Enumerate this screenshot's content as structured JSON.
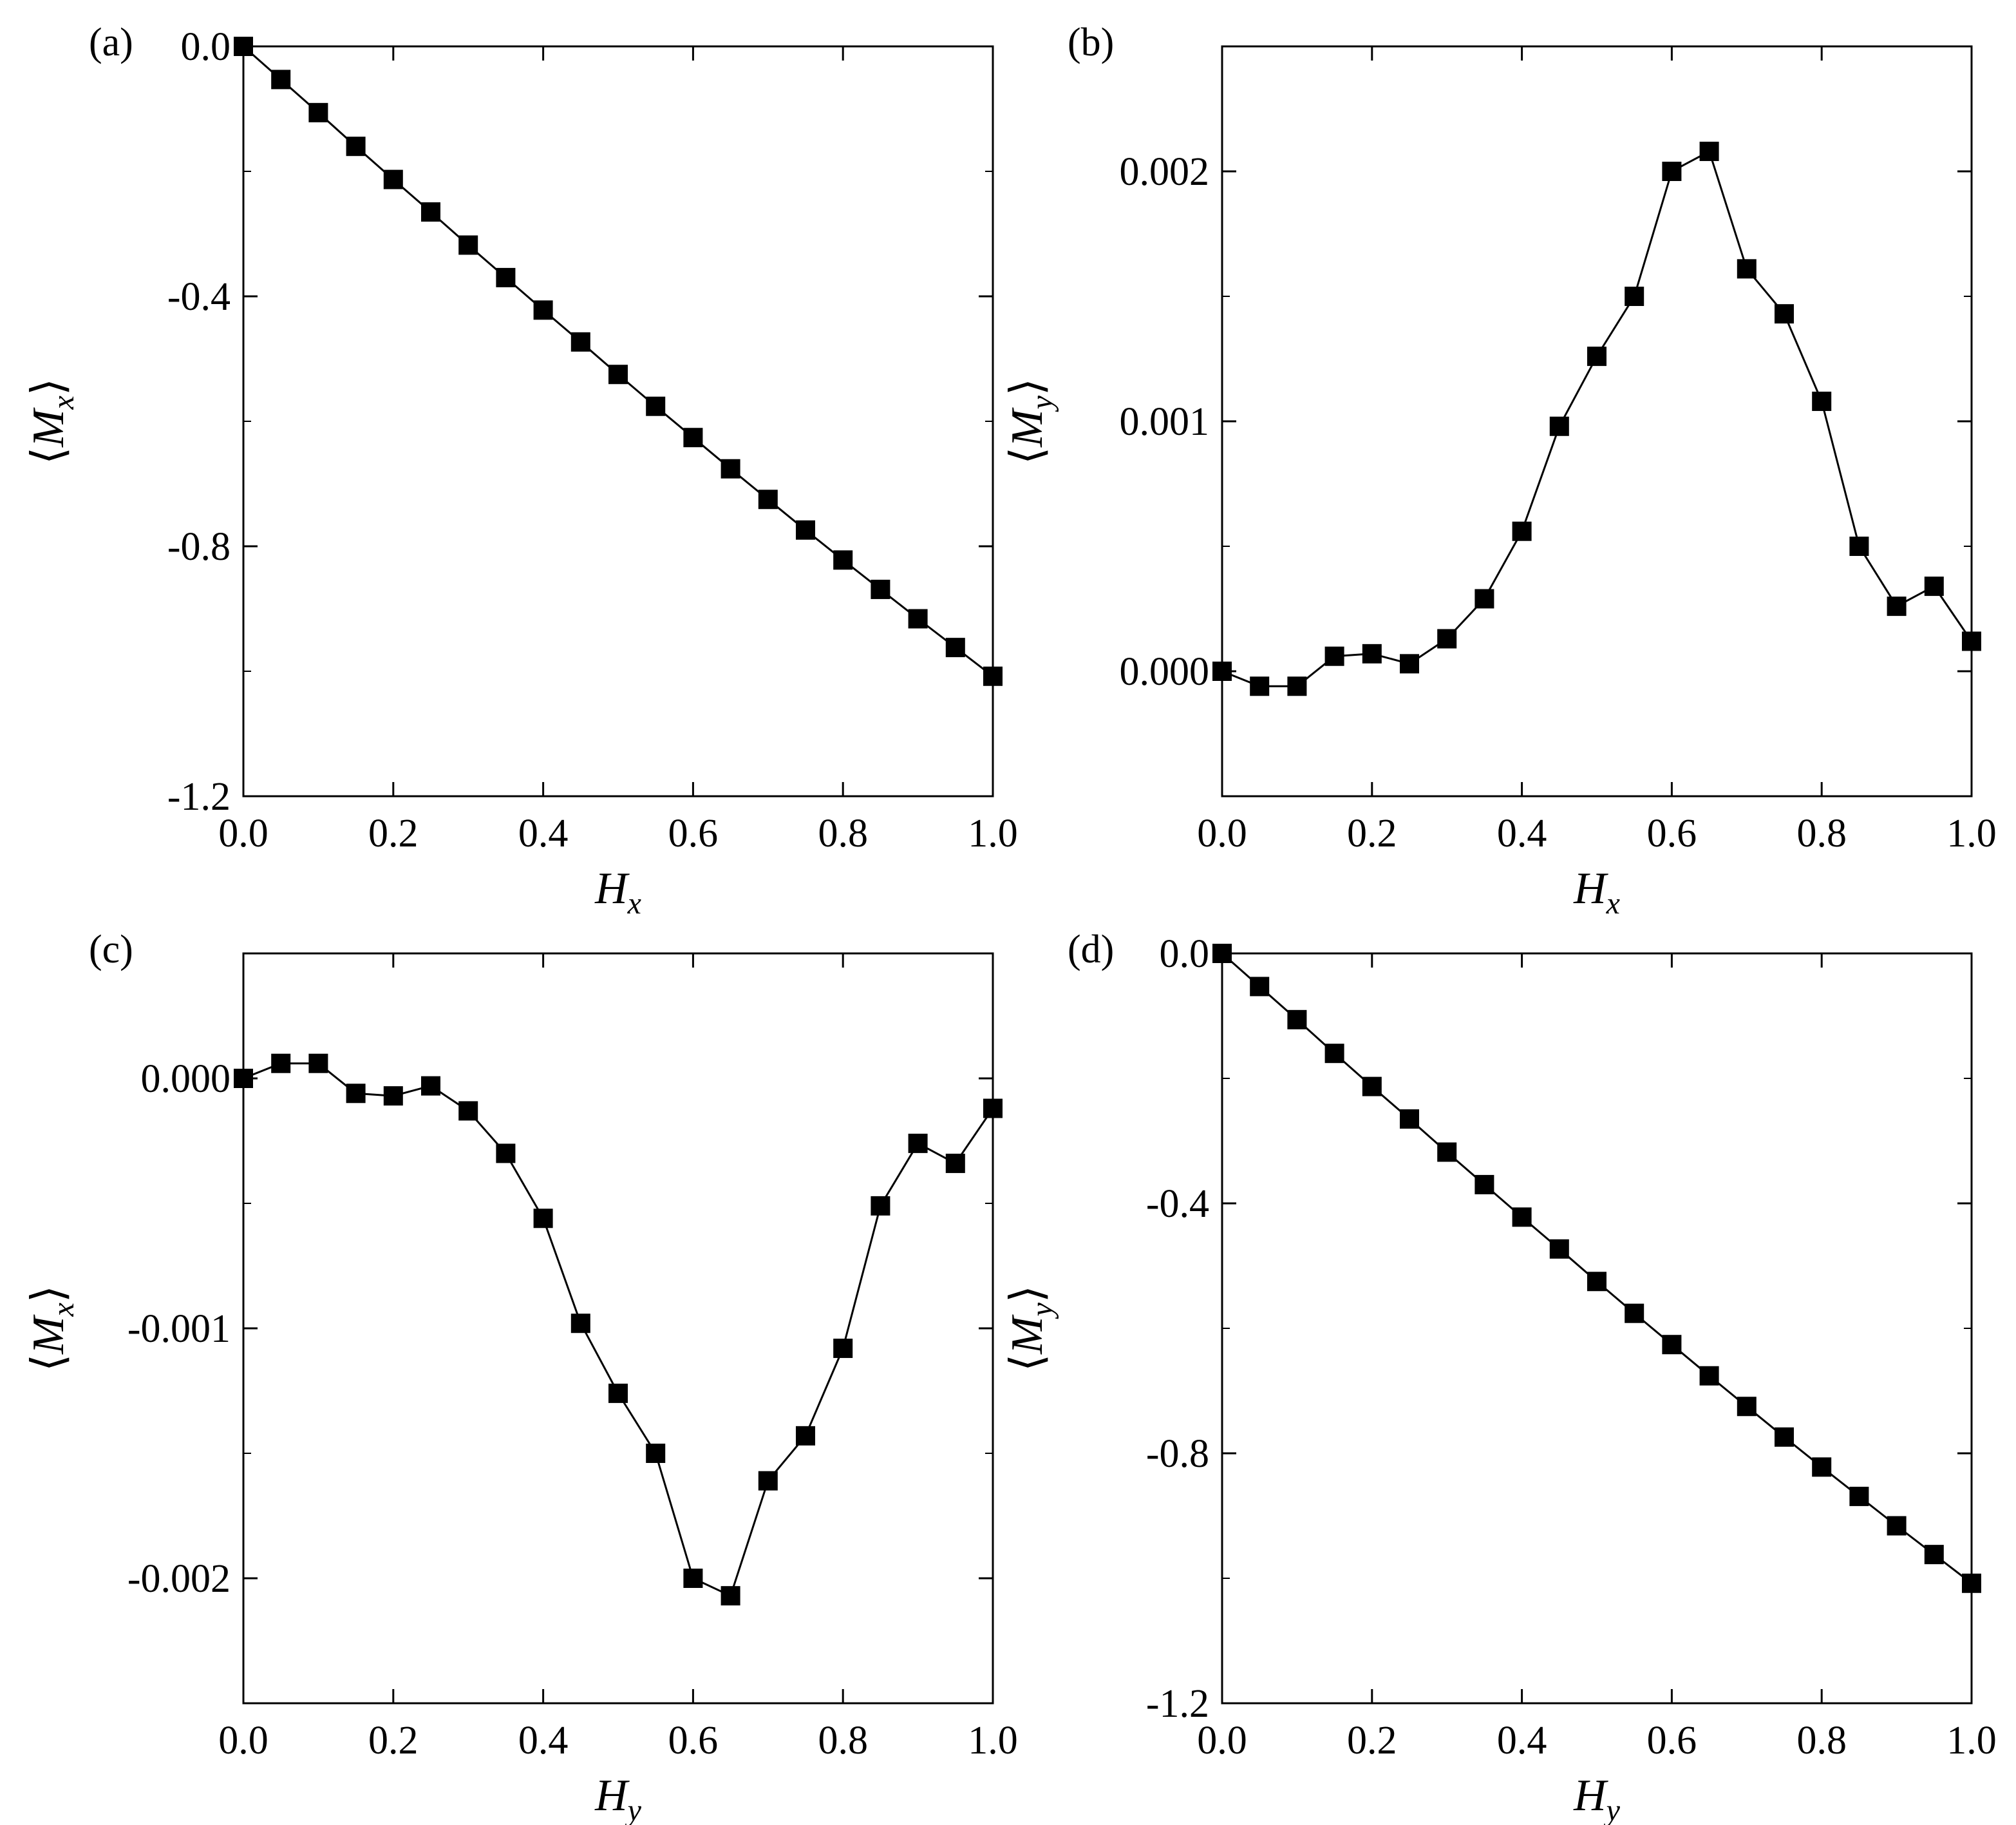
{
  "chart_data": [
    {
      "type": "line",
      "panel_label": "(a)",
      "xlabel": {
        "main": "H",
        "sub": "x"
      },
      "ylabel": {
        "open": "⟨",
        "main": "M",
        "sub": "x",
        "close": "⟩"
      },
      "xlim": [
        0,
        1
      ],
      "ylim": [
        -1.2,
        0
      ],
      "xticks": [
        0,
        0.2,
        0.4,
        0.6,
        0.8,
        1.0
      ],
      "xtick_labels": [
        "0.0",
        "0.2",
        "0.4",
        "0.6",
        "0.8",
        "1.0"
      ],
      "yticks": [
        0,
        -0.4,
        -0.8,
        -1.2
      ],
      "ytick_labels": [
        "0.0",
        "-0.4",
        "-0.8",
        "-1.2"
      ],
      "yminor": [
        -0.2,
        -0.6,
        -1.0
      ],
      "marker": "square",
      "color": "#000000",
      "series": [
        {
          "x": [
            0,
            0.05,
            0.1,
            0.15,
            0.2,
            0.25,
            0.3,
            0.35,
            0.4,
            0.45,
            0.5,
            0.55,
            0.6,
            0.65,
            0.7,
            0.75,
            0.8,
            0.85,
            0.9,
            0.95,
            1.0
          ],
          "y": [
            0,
            -0.053,
            -0.106,
            -0.16,
            -0.213,
            -0.265,
            -0.318,
            -0.37,
            -0.422,
            -0.473,
            -0.525,
            -0.576,
            -0.626,
            -0.676,
            -0.725,
            -0.774,
            -0.822,
            -0.869,
            -0.916,
            -0.962,
            -1.008
          ]
        }
      ]
    },
    {
      "type": "line",
      "panel_label": "(b)",
      "xlabel": {
        "main": "H",
        "sub": "x"
      },
      "ylabel": {
        "open": "⟨",
        "main": "M",
        "sub": "y",
        "close": "⟩"
      },
      "xlim": [
        0,
        1
      ],
      "ylim": [
        -0.0005,
        0.0025
      ],
      "xticks": [
        0,
        0.2,
        0.4,
        0.6,
        0.8,
        1.0
      ],
      "xtick_labels": [
        "0.0",
        "0.2",
        "0.4",
        "0.6",
        "0.8",
        "1.0"
      ],
      "yticks": [
        0,
        0.001,
        0.002
      ],
      "ytick_labels": [
        "0.000",
        "0.001",
        "0.002"
      ],
      "yminor": [
        0.0005,
        0.0015
      ],
      "marker": "square",
      "color": "#000000",
      "series": [
        {
          "x": [
            0,
            0.05,
            0.1,
            0.15,
            0.2,
            0.25,
            0.3,
            0.35,
            0.4,
            0.45,
            0.5,
            0.55,
            0.6,
            0.65,
            0.7,
            0.75,
            0.8,
            0.85,
            0.9,
            0.95,
            1.0
          ],
          "y": [
            0.0,
            -6e-05,
            -6e-05,
            6e-05,
            7e-05,
            3e-05,
            0.00013,
            0.00029,
            0.00056,
            0.00098,
            0.00126,
            0.0015,
            0.002,
            0.00208,
            0.00161,
            0.00143,
            0.00108,
            0.0005,
            0.00026,
            0.00034,
            0.00012
          ]
        }
      ]
    },
    {
      "type": "line",
      "panel_label": "(c)",
      "xlabel": {
        "main": "H",
        "sub": "y"
      },
      "ylabel": {
        "open": "⟨",
        "main": "M",
        "sub": "x",
        "close": "⟩"
      },
      "xlim": [
        0,
        1
      ],
      "ylim": [
        -0.0025,
        0.0005
      ],
      "xticks": [
        0,
        0.2,
        0.4,
        0.6,
        0.8,
        1.0
      ],
      "xtick_labels": [
        "0.0",
        "0.2",
        "0.4",
        "0.6",
        "0.8",
        "1.0"
      ],
      "yticks": [
        0,
        -0.001,
        -0.002
      ],
      "ytick_labels": [
        "0.000",
        "-0.001",
        "-0.002"
      ],
      "yminor": [
        -0.0005,
        -0.0015
      ],
      "marker": "square",
      "color": "#000000",
      "series": [
        {
          "x": [
            0,
            0.05,
            0.1,
            0.15,
            0.2,
            0.25,
            0.3,
            0.35,
            0.4,
            0.45,
            0.5,
            0.55,
            0.6,
            0.65,
            0.7,
            0.75,
            0.8,
            0.85,
            0.9,
            0.95,
            1.0
          ],
          "y": [
            0.0,
            6e-05,
            6e-05,
            -6e-05,
            -7e-05,
            -3e-05,
            -0.00013,
            -0.0003,
            -0.00056,
            -0.00098,
            -0.00126,
            -0.0015,
            -0.002,
            -0.00207,
            -0.00161,
            -0.00143,
            -0.00108,
            -0.00051,
            -0.00026,
            -0.00034,
            -0.00012
          ]
        }
      ]
    },
    {
      "type": "line",
      "panel_label": "(d)",
      "xlabel": {
        "main": "H",
        "sub": "y"
      },
      "ylabel": {
        "open": "⟨",
        "main": "M",
        "sub": "y",
        "close": "⟩"
      },
      "xlim": [
        0,
        1
      ],
      "ylim": [
        -1.2,
        0
      ],
      "xticks": [
        0,
        0.2,
        0.4,
        0.6,
        0.8,
        1.0
      ],
      "xtick_labels": [
        "0.0",
        "0.2",
        "0.4",
        "0.6",
        "0.8",
        "1.0"
      ],
      "yticks": [
        0,
        -0.4,
        -0.8,
        -1.2
      ],
      "ytick_labels": [
        "0.0",
        "-0.4",
        "-0.8",
        "-1.2"
      ],
      "yminor": [
        -0.2,
        -0.6,
        -1.0
      ],
      "marker": "square",
      "color": "#000000",
      "series": [
        {
          "x": [
            0,
            0.05,
            0.1,
            0.15,
            0.2,
            0.25,
            0.3,
            0.35,
            0.4,
            0.45,
            0.5,
            0.55,
            0.6,
            0.65,
            0.7,
            0.75,
            0.8,
            0.85,
            0.9,
            0.95,
            1.0
          ],
          "y": [
            0,
            -0.053,
            -0.106,
            -0.16,
            -0.213,
            -0.265,
            -0.318,
            -0.37,
            -0.422,
            -0.473,
            -0.525,
            -0.576,
            -0.626,
            -0.676,
            -0.725,
            -0.774,
            -0.822,
            -0.869,
            -0.916,
            -0.962,
            -1.008
          ]
        }
      ]
    }
  ]
}
